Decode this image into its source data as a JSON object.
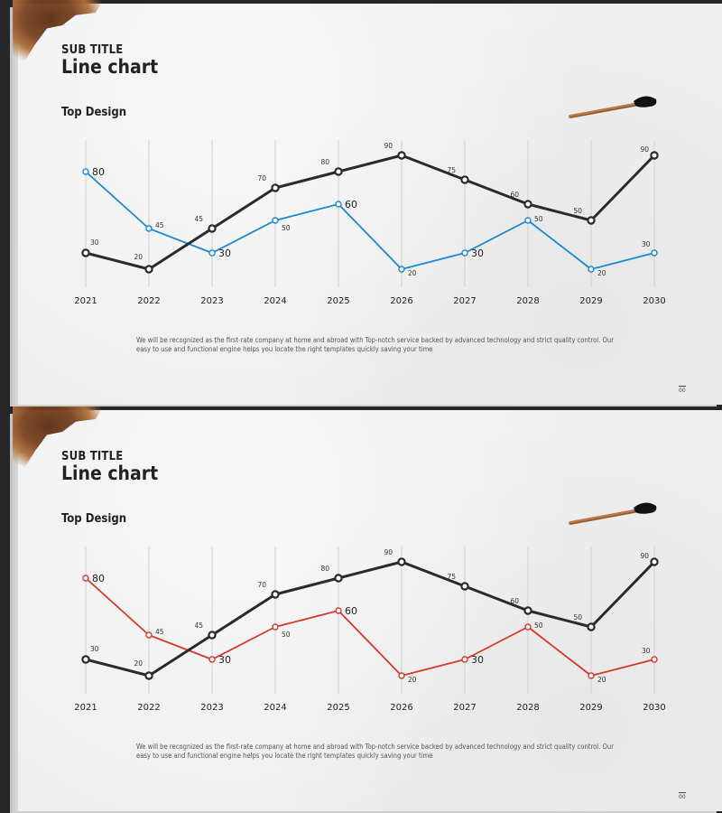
{
  "slides": [
    {
      "sub_title": "SUB TITLE",
      "title": "Line chart",
      "section_title": "Top Design",
      "description": "We will be recognized as the first-rate company at home and abroad with Top-notch service backed by advanced technology and strict quality control. Our easy to use and functional engine helps you locate the right templates quickly saving your time",
      "page_number": "00",
      "accent_color": "#1a8ad4"
    },
    {
      "sub_title": "SUB TITLE",
      "title": "Line chart",
      "section_title": "Top Design",
      "description": "We will be recognized as the first-rate company at home and abroad with Top-notch service backed by advanced technology and strict quality control. Our easy to use and functional engine helps you locate the right templates quickly saving your time",
      "page_number": "00",
      "accent_color": "#d63a2b"
    }
  ],
  "chart_data": [
    {
      "type": "line",
      "categories": [
        "2021",
        "2022",
        "2023",
        "2024",
        "2025",
        "2026",
        "2027",
        "2028",
        "2029",
        "2030"
      ],
      "series": [
        {
          "values": [
            30,
            20,
            45,
            70,
            80,
            90,
            75,
            60,
            50,
            90
          ],
          "color": "#2b2b2b"
        },
        {
          "values": [
            80,
            45,
            30,
            50,
            60,
            20,
            30,
            50,
            20,
            30
          ],
          "color": "#1a8ad4"
        }
      ],
      "ylim": [
        0,
        100
      ],
      "grid": "vertical"
    },
    {
      "type": "line",
      "categories": [
        "2021",
        "2022",
        "2023",
        "2024",
        "2025",
        "2026",
        "2027",
        "2028",
        "2029",
        "2030"
      ],
      "series": [
        {
          "values": [
            30,
            20,
            45,
            70,
            80,
            90,
            75,
            60,
            50,
            90
          ],
          "color": "#2b2b2b"
        },
        {
          "values": [
            80,
            45,
            30,
            50,
            60,
            20,
            30,
            50,
            20,
            30
          ],
          "color": "#d63a2b"
        }
      ],
      "ylim": [
        0,
        100
      ],
      "grid": "vertical"
    }
  ]
}
